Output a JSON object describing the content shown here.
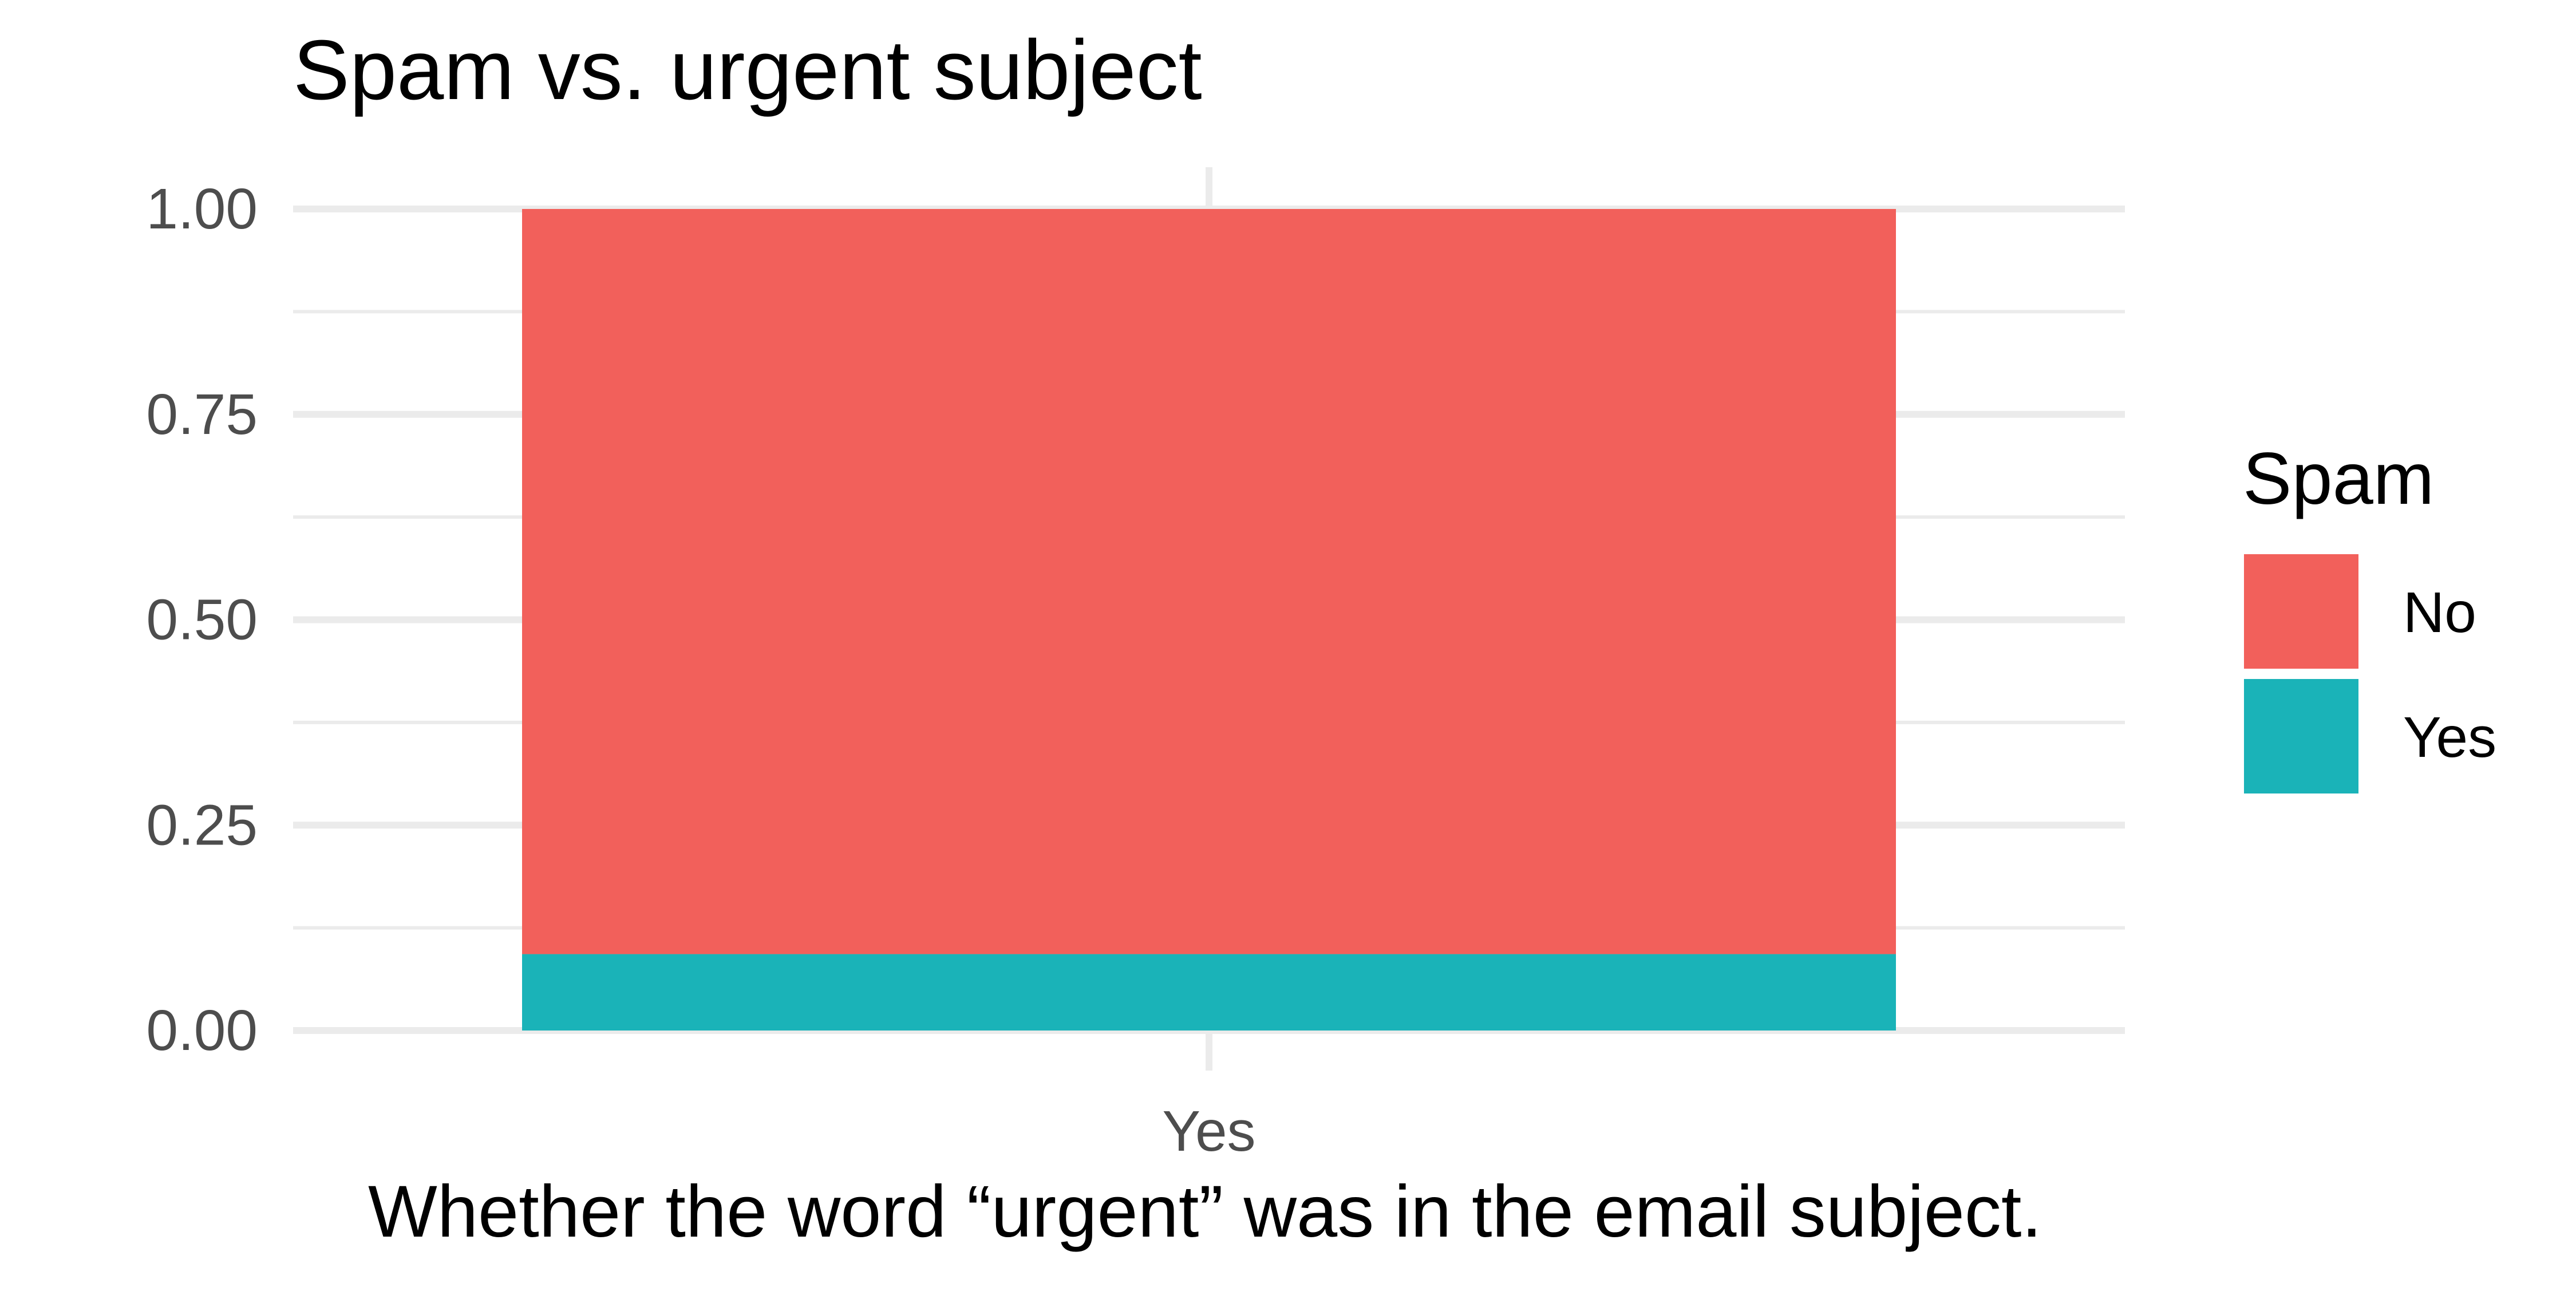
{
  "chart_data": {
    "type": "bar",
    "stacked": true,
    "title": "Spam vs. urgent subject",
    "xlabel": "Whether the word “urgent” was in the email subject.",
    "ylabel": "",
    "categories": [
      "Yes"
    ],
    "ylim": [
      0,
      1
    ],
    "yticks": [
      "0.00",
      "0.25",
      "0.50",
      "0.75",
      "1.00"
    ],
    "grid": true,
    "legend": {
      "title": "Spam",
      "placement": "right"
    },
    "series": [
      {
        "name": "No",
        "values": [
          0.907
        ],
        "color": "#F2605B"
      },
      {
        "name": "Yes",
        "values": [
          0.093
        ],
        "color": "#1AB3B8"
      }
    ]
  }
}
